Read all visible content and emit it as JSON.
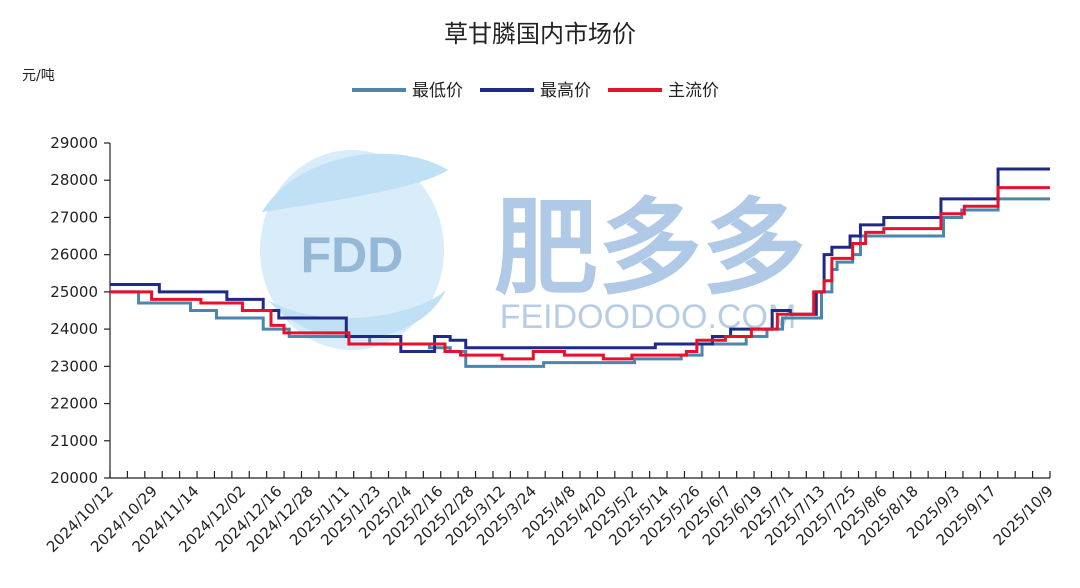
{
  "chart_data": {
    "type": "line",
    "title": "草甘膦国内市场价",
    "ylabel": "元/吨",
    "xlabel": "",
    "ylim": [
      20000,
      29000
    ],
    "yticks": [
      20000,
      21000,
      22000,
      23000,
      24000,
      25000,
      26000,
      27000,
      28000,
      29000
    ],
    "legend_position": "top-center",
    "grid": false,
    "x_tick_labels": [
      "2024/10/12",
      "2024/10/29",
      "2024/11/14",
      "2024/12/02",
      "2024/12/16",
      "2024/12/28",
      "2025/1/11",
      "2025/1/23",
      "2025/2/4",
      "2025/2/16",
      "2025/2/28",
      "2025/3/12",
      "2025/3/24",
      "2025/4/8",
      "2025/4/20",
      "2025/5/2",
      "2025/5/14",
      "2025/5/26",
      "2025/6/7",
      "2025/6/19",
      "2025/7/1",
      "2025/7/13",
      "2025/7/25",
      "2025/8/6",
      "2025/8/18",
      "2025/9/3",
      "2025/9/17",
      "2025/10/9"
    ],
    "series": [
      {
        "name": "最低价",
        "color": "#4a86ad",
        "points": [
          [
            "2024/10/12",
            25000
          ],
          [
            "2024/10/23",
            24700
          ],
          [
            "2024/11/12",
            24500
          ],
          [
            "2024/11/22",
            24300
          ],
          [
            "2024/12/10",
            24000
          ],
          [
            "2024/12/20",
            23800
          ],
          [
            "2025/1/8",
            23800
          ],
          [
            "2025/1/20",
            23600
          ],
          [
            "2025/2/12",
            23500
          ],
          [
            "2025/2/20",
            23400
          ],
          [
            "2025/2/26",
            23000
          ],
          [
            "2025/3/12",
            23000
          ],
          [
            "2025/3/28",
            23100
          ],
          [
            "2025/4/20",
            23100
          ],
          [
            "2025/5/2",
            23200
          ],
          [
            "2025/5/20",
            23300
          ],
          [
            "2025/5/28",
            23600
          ],
          [
            "2025/6/14",
            23800
          ],
          [
            "2025/6/22",
            24000
          ],
          [
            "2025/6/28",
            24300
          ],
          [
            "2025/7/10",
            24300
          ],
          [
            "2025/7/13",
            25000
          ],
          [
            "2025/7/17",
            25600
          ],
          [
            "2025/7/19",
            25800
          ],
          [
            "2025/7/25",
            26000
          ],
          [
            "2025/7/28",
            26500
          ],
          [
            "2025/8/12",
            26500
          ],
          [
            "2025/8/28",
            26500
          ],
          [
            "2025/8/29",
            27000
          ],
          [
            "2025/9/5",
            27200
          ],
          [
            "2025/9/19",
            27500
          ],
          [
            "2025/10/9",
            27500
          ]
        ]
      },
      {
        "name": "最高价",
        "color": "#1f2a85",
        "points": [
          [
            "2024/10/12",
            25200
          ],
          [
            "2024/10/31",
            25000
          ],
          [
            "2024/11/26",
            24800
          ],
          [
            "2024/12/10",
            24500
          ],
          [
            "2024/12/16",
            24300
          ],
          [
            "2025/1/11",
            23800
          ],
          [
            "2025/2/1",
            23400
          ],
          [
            "2025/2/14",
            23800
          ],
          [
            "2025/2/20",
            23700
          ],
          [
            "2025/2/26",
            23500
          ],
          [
            "2025/5/10",
            23600
          ],
          [
            "2025/6/1",
            23800
          ],
          [
            "2025/6/8",
            24000
          ],
          [
            "2025/6/24",
            24500
          ],
          [
            "2025/7/1",
            24400
          ],
          [
            "2025/7/11",
            25000
          ],
          [
            "2025/7/14",
            26000
          ],
          [
            "2025/7/17",
            26200
          ],
          [
            "2025/7/24",
            26500
          ],
          [
            "2025/7/28",
            26800
          ],
          [
            "2025/8/6",
            27000
          ],
          [
            "2025/8/28",
            27500
          ],
          [
            "2025/9/19",
            28300
          ],
          [
            "2025/10/9",
            28300
          ]
        ]
      },
      {
        "name": "主流价",
        "color": "#e8112d",
        "points": [
          [
            "2024/10/12",
            25000
          ],
          [
            "2024/10/28",
            24800
          ],
          [
            "2024/11/16",
            24700
          ],
          [
            "2024/12/02",
            24500
          ],
          [
            "2024/12/13",
            24100
          ],
          [
            "2024/12/18",
            23900
          ],
          [
            "2025/1/12",
            23600
          ],
          [
            "2025/2/18",
            23400
          ],
          [
            "2025/2/24",
            23300
          ],
          [
            "2025/3/12",
            23200
          ],
          [
            "2025/3/24",
            23400
          ],
          [
            "2025/4/5",
            23300
          ],
          [
            "2025/4/20",
            23200
          ],
          [
            "2025/5/1",
            23300
          ],
          [
            "2025/5/22",
            23400
          ],
          [
            "2025/5/26",
            23700
          ],
          [
            "2025/6/6",
            23800
          ],
          [
            "2025/6/16",
            24000
          ],
          [
            "2025/6/26",
            24400
          ],
          [
            "2025/7/10",
            25000
          ],
          [
            "2025/7/14",
            25300
          ],
          [
            "2025/7/17",
            25900
          ],
          [
            "2025/7/25",
            26300
          ],
          [
            "2025/7/30",
            26600
          ],
          [
            "2025/8/6",
            26700
          ],
          [
            "2025/8/28",
            27100
          ],
          [
            "2025/9/6",
            27300
          ],
          [
            "2025/9/19",
            27800
          ],
          [
            "2025/10/9",
            27800
          ]
        ]
      }
    ]
  },
  "watermark": {
    "logo_text": "FDD",
    "brand_text": "肥多多",
    "site_text": "FEIDOODOO.COM"
  }
}
